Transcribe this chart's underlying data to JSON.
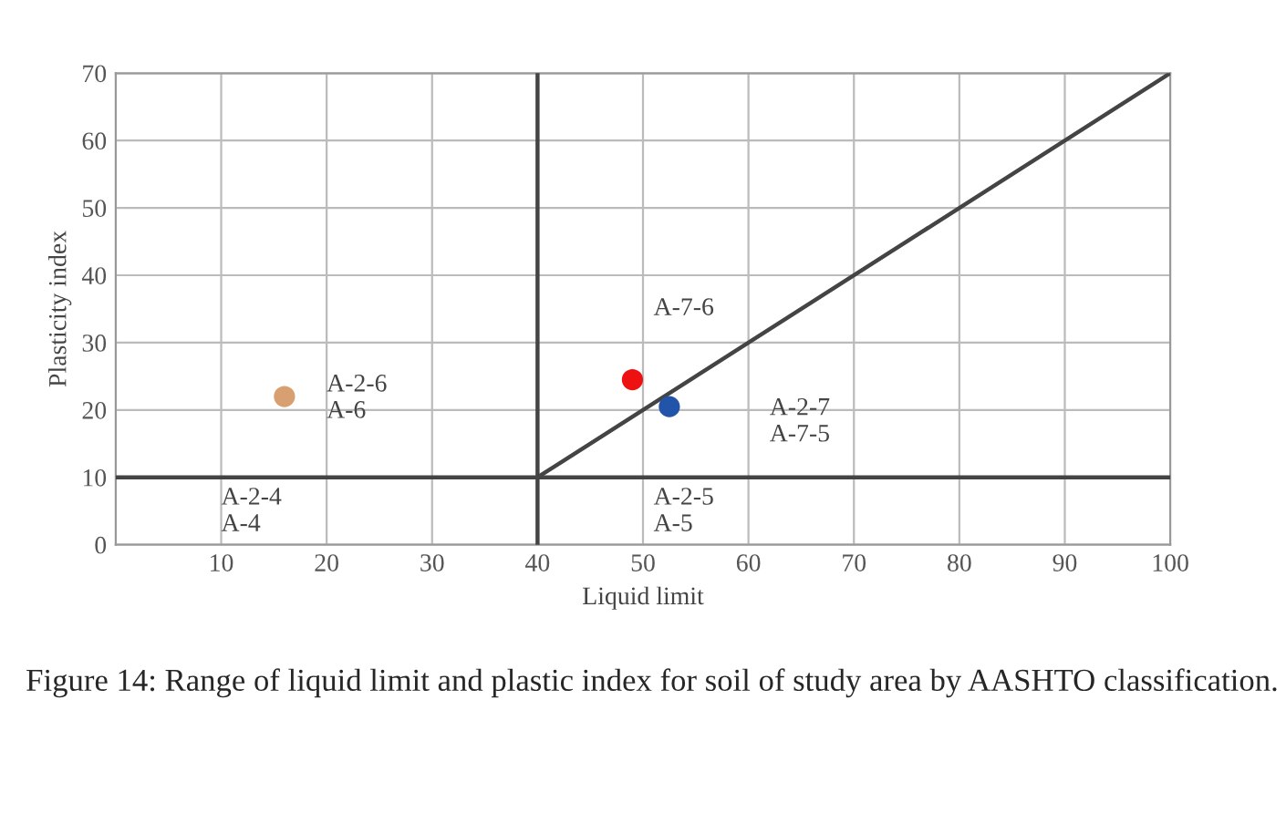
{
  "chart_data": {
    "type": "scatter",
    "xlabel": "Liquid limit",
    "ylabel": "Plasticity index",
    "xlim": [
      0,
      100
    ],
    "xticks": [
      {
        "value": 0,
        "label": null
      },
      10,
      20,
      30,
      40,
      50,
      60,
      70,
      80,
      90,
      100
    ],
    "ylim": [
      0,
      70
    ],
    "yticks": [
      0,
      10,
      20,
      30,
      40,
      50,
      60,
      70
    ],
    "grid": true,
    "series": [
      {
        "type": "line",
        "x": [
          40,
          40
        ],
        "values": [
          0,
          70
        ],
        "color": "#444444"
      },
      {
        "type": "line",
        "x": [
          0,
          100
        ],
        "values": [
          10,
          10
        ],
        "color": "#444444"
      },
      {
        "type": "line",
        "x": [
          40,
          100
        ],
        "values": [
          10,
          70
        ],
        "color": "#444444"
      },
      {
        "x": [
          49
        ],
        "values": [
          24.5
        ],
        "color": "#ee1111"
      },
      {
        "x": [
          52.5
        ],
        "values": [
          20.5
        ],
        "color": "#2255aa"
      },
      {
        "x": [
          16
        ],
        "values": [
          22
        ],
        "color": "#d8a070"
      }
    ],
    "annotations": [
      "A-2-4\nA-4",
      "A-2-6\nA-6",
      "A-7-6",
      "A-2-7\nA-7-5",
      "A-2-5\nA-5",
      "Figure 14: Range of liquid limit and plastic index for soil of study area by AASHTO classification."
    ]
  }
}
